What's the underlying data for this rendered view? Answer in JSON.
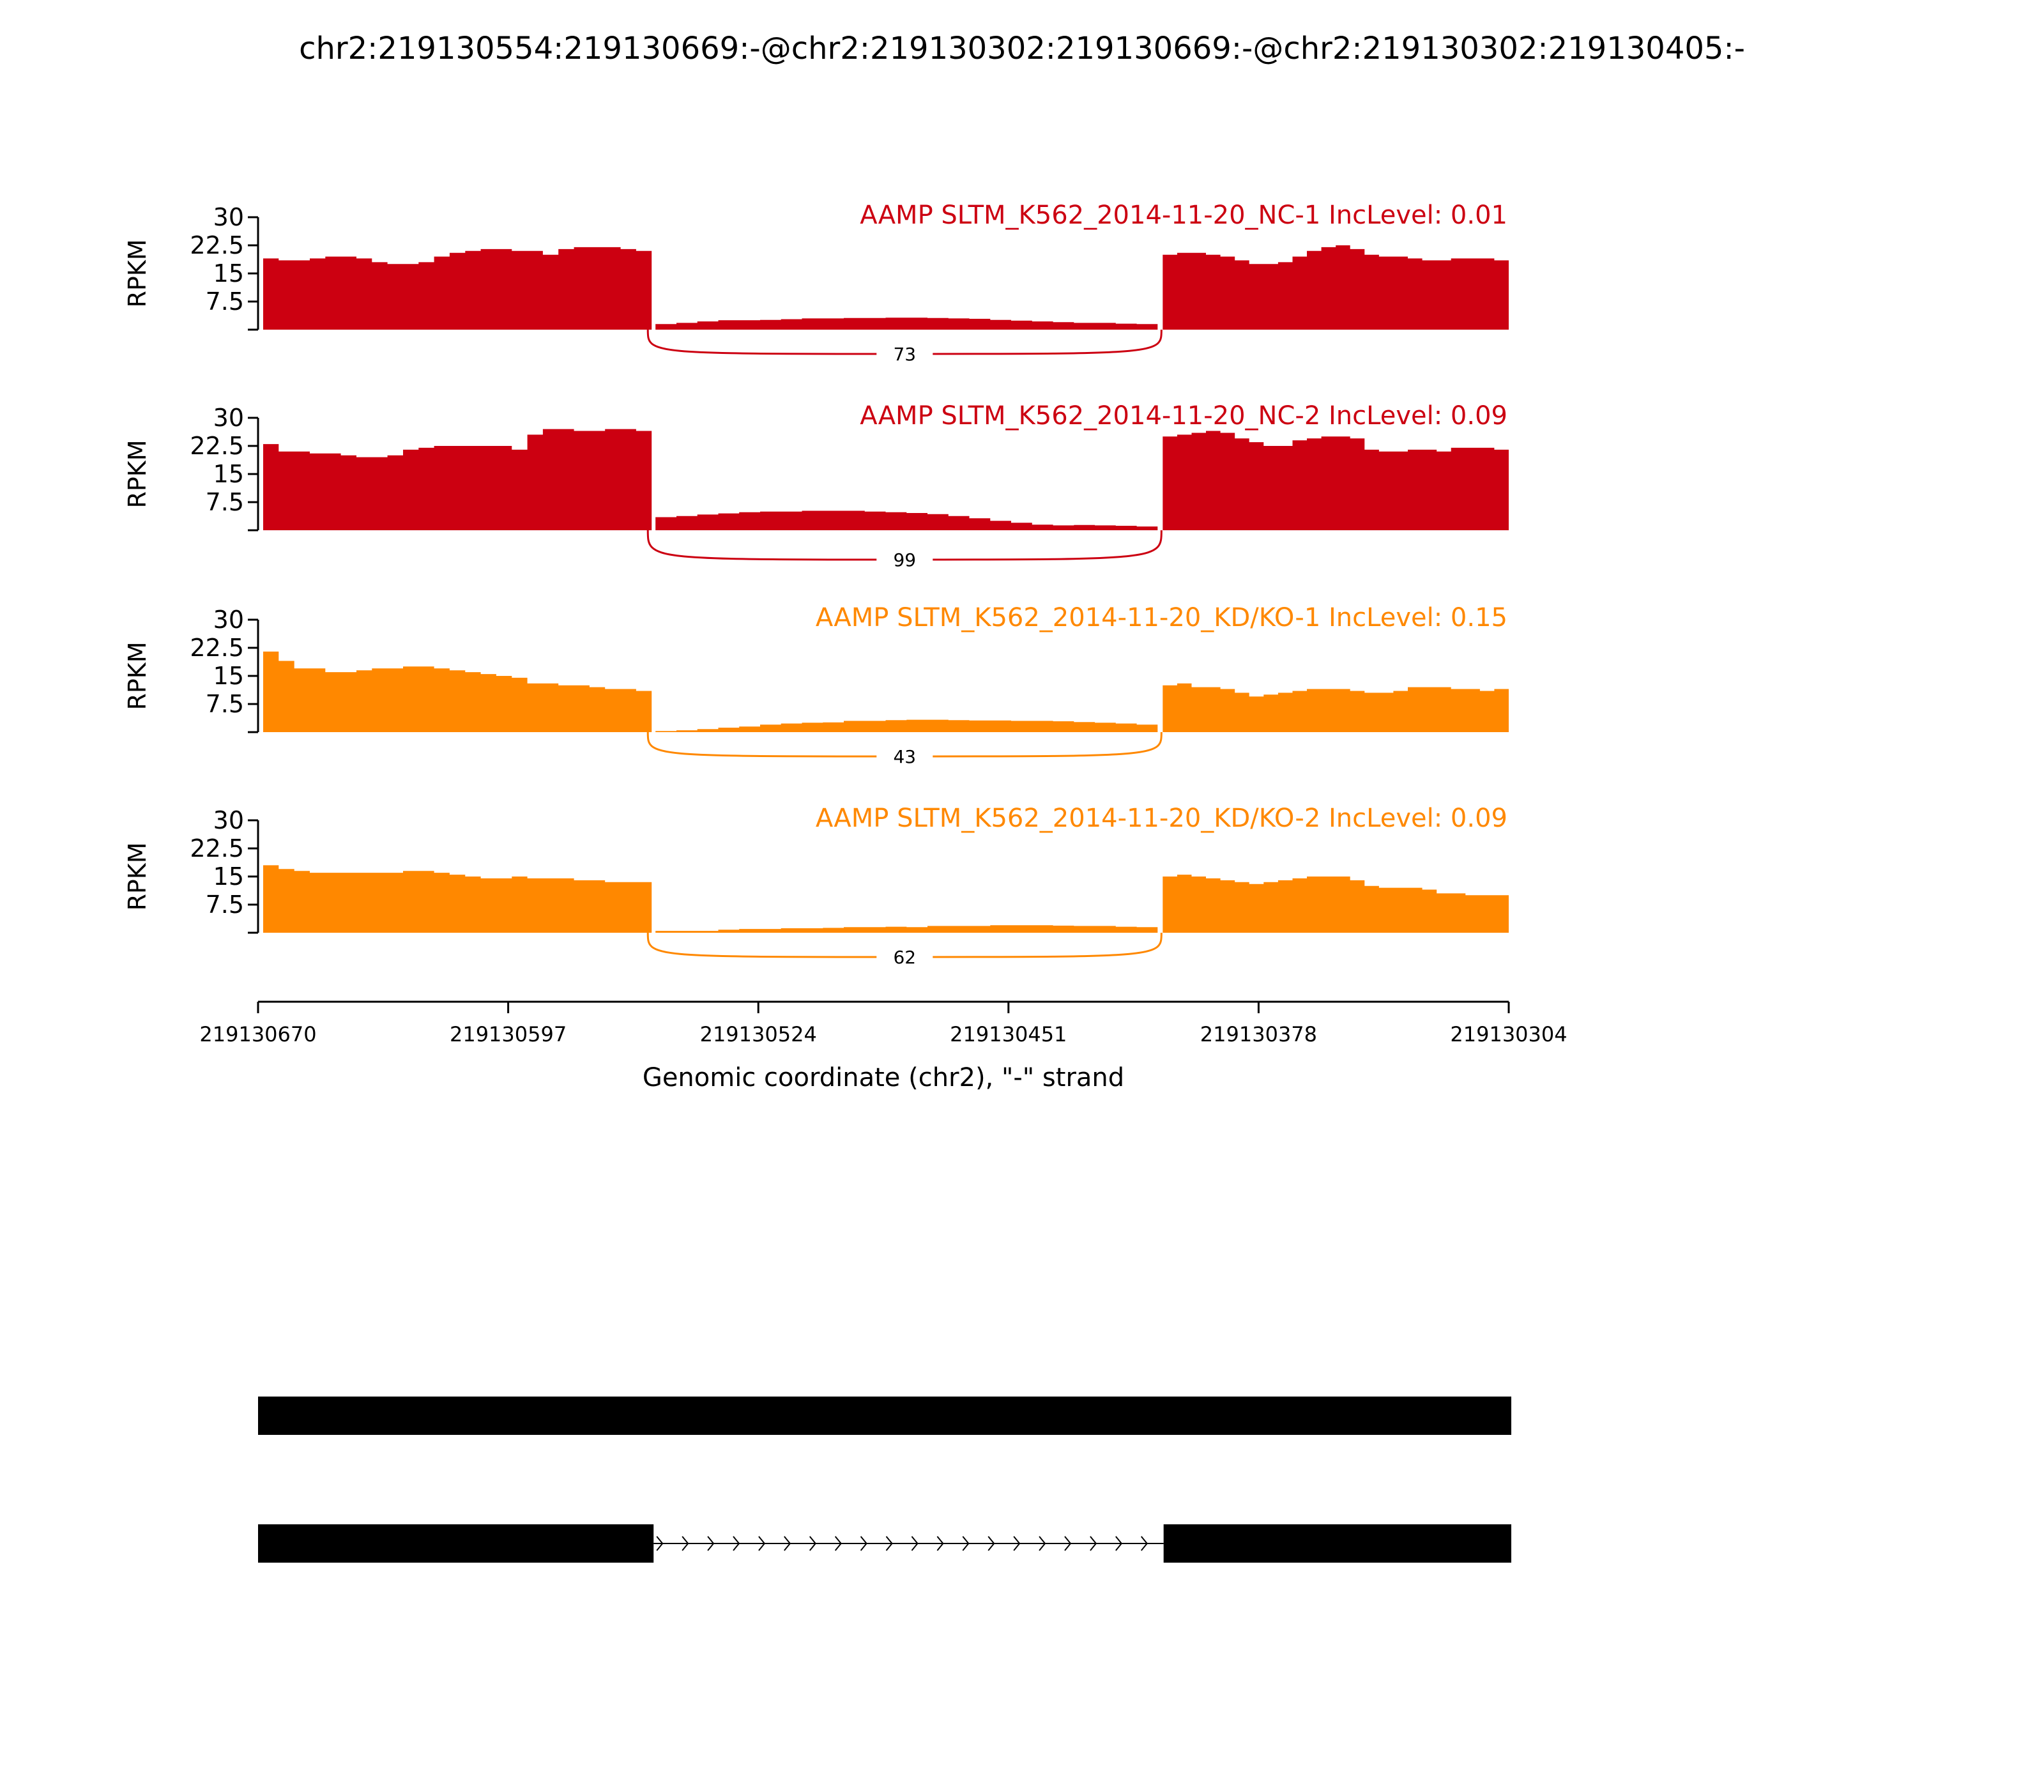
{
  "chart_data": {
    "type": "area",
    "title": "chr2:219130554:219130669:-@chr2:219130302:219130669:-@chr2:219130302:219130405:-",
    "ylabel": "RPKM",
    "xlabel": "Genomic coordinate (chr2), \"-\" strand",
    "ylim": [
      0,
      30
    ],
    "yticks": [
      "30",
      "22.5",
      "15",
      "7.5"
    ],
    "xlim": [
      219130670,
      219130304
    ],
    "xticks": [
      "219130670",
      "219130597",
      "219130524",
      "219130451",
      "219130378",
      "219130304"
    ],
    "regions": {
      "upstream_exon": [
        219130670,
        219130555
      ],
      "skipped_exon": [
        219130554,
        219130406
      ],
      "downstream_exon": [
        219130405,
        219130304
      ]
    },
    "series": [
      {
        "name": "AAMP SLTM_K562_2014-11-20_NC-1 IncLevel: 0.01",
        "color": "#cc0011",
        "junction_count": "73",
        "upstream": [
          19,
          18.5,
          18.5,
          19,
          19.5,
          19.5,
          19,
          18,
          17.5,
          17.5,
          18,
          19.5,
          20.5,
          21,
          21.5,
          21.5,
          21,
          21,
          20,
          21.5,
          22,
          22,
          22,
          21.5,
          21
        ],
        "skipped": [
          1.5,
          1.8,
          2.2,
          2.5,
          2.5,
          2.6,
          2.8,
          3,
          3,
          3.1,
          3.1,
          3.2,
          3.2,
          3.1,
          3,
          2.9,
          2.6,
          2.4,
          2.2,
          2,
          1.8,
          1.8,
          1.6,
          1.5
        ],
        "downstream": [
          20,
          20.5,
          20.5,
          20,
          19.5,
          18.5,
          17.5,
          17.5,
          18,
          19.5,
          21,
          22,
          22.5,
          21.5,
          20,
          19.5,
          19.5,
          19,
          18.5,
          18.5,
          19,
          19,
          19,
          18.5
        ]
      },
      {
        "name": "AAMP SLTM_K562_2014-11-20_NC-2 IncLevel: 0.09",
        "color": "#cc0011",
        "junction_count": "99",
        "upstream": [
          23,
          21,
          21,
          20.5,
          20.5,
          20,
          19.5,
          19.5,
          20,
          21.5,
          22,
          22.5,
          22.5,
          22.5,
          22.5,
          22.5,
          21.5,
          25.5,
          27,
          27,
          26.5,
          26.5,
          27,
          27,
          26.5
        ],
        "skipped": [
          3.5,
          3.8,
          4.2,
          4.5,
          4.8,
          5,
          5,
          5.2,
          5.2,
          5.2,
          5,
          4.8,
          4.6,
          4.3,
          3.8,
          3.2,
          2.5,
          2,
          1.5,
          1.3,
          1.4,
          1.3,
          1.2,
          1
        ],
        "downstream": [
          25,
          25.5,
          26,
          26.5,
          26,
          24.5,
          23.5,
          22.5,
          22.5,
          24,
          24.5,
          25,
          25,
          24.5,
          21.5,
          21,
          21,
          21.5,
          21.5,
          21,
          22,
          22,
          22,
          21.5
        ]
      },
      {
        "name": "AAMP SLTM_K562_2014-11-20_KD/KO-1 IncLevel: 0.15",
        "color": "#ff8800",
        "junction_count": "43",
        "upstream": [
          21.5,
          19,
          17,
          17,
          16,
          16,
          16.5,
          17,
          17,
          17.5,
          17.5,
          17,
          16.5,
          16,
          15.5,
          15,
          14.5,
          13,
          13,
          12.5,
          12.5,
          12,
          11.5,
          11.5,
          11
        ],
        "skipped": [
          0.3,
          0.5,
          0.8,
          1.2,
          1.5,
          2,
          2.3,
          2.5,
          2.6,
          3,
          3,
          3.2,
          3.3,
          3.3,
          3.2,
          3.1,
          3.1,
          3,
          3,
          2.9,
          2.7,
          2.5,
          2.3,
          2
        ],
        "downstream": [
          12.5,
          13,
          12,
          12,
          11.5,
          10.5,
          9.5,
          10,
          10.5,
          11,
          11.5,
          11.5,
          11.5,
          11,
          10.5,
          10.5,
          11,
          12,
          12,
          12,
          11.5,
          11.5,
          11,
          11.5
        ]
      },
      {
        "name": "AAMP SLTM_K562_2014-11-20_KD/KO-2 IncLevel: 0.09",
        "color": "#ff8800",
        "junction_count": "62",
        "upstream": [
          18,
          17,
          16.5,
          16,
          16,
          16,
          16,
          16,
          16,
          16.5,
          16.5,
          16,
          15.5,
          15,
          14.5,
          14.5,
          15,
          14.5,
          14.5,
          14.5,
          14,
          14,
          13.5,
          13.5,
          13.5
        ],
        "skipped": [
          0.5,
          0.5,
          0.5,
          0.8,
          1,
          1,
          1.2,
          1.2,
          1.3,
          1.5,
          1.5,
          1.6,
          1.5,
          1.8,
          1.8,
          1.8,
          2,
          2,
          2,
          1.9,
          1.8,
          1.8,
          1.6,
          1.5
        ],
        "downstream": [
          15,
          15.5,
          15,
          14.5,
          14,
          13.5,
          13,
          13.5,
          14,
          14.5,
          15,
          15,
          15,
          14,
          12.5,
          12,
          12,
          12,
          11.5,
          10.5,
          10.5,
          10,
          10,
          10
        ]
      }
    ],
    "isoforms": [
      {
        "exons": [
          [
            219130670,
            219130304
          ]
        ]
      },
      {
        "exons": [
          [
            219130670,
            219130555
          ],
          [
            219130405,
            219130304
          ]
        ]
      }
    ]
  }
}
